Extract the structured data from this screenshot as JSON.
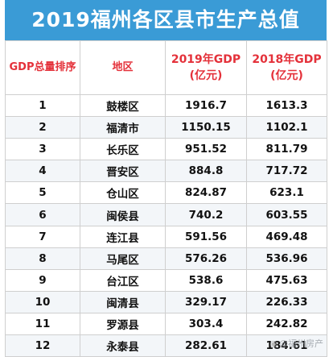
{
  "title": "2019福州各区县市生产总值",
  "headers": {
    "rank": "GDP总量排序",
    "district": "地区",
    "gdp2019_line1": "2019年GDP",
    "gdp2019_line2": "(亿元)",
    "gdp2018_line1": "2018年GDP",
    "gdp2018_line2": "(亿元)"
  },
  "rows": [
    {
      "rank": "1",
      "district": "鼓楼区",
      "gdp2019": "1916.7",
      "gdp2018": "1613.3"
    },
    {
      "rank": "2",
      "district": "福清市",
      "gdp2019": "1150.15",
      "gdp2018": "1102.1"
    },
    {
      "rank": "3",
      "district": "长乐区",
      "gdp2019": "951.52",
      "gdp2018": "811.79"
    },
    {
      "rank": "4",
      "district": "晋安区",
      "gdp2019": "884.8",
      "gdp2018": "717.72"
    },
    {
      "rank": "5",
      "district": "仓山区",
      "gdp2019": "824.87",
      "gdp2018": "623.1"
    },
    {
      "rank": "6",
      "district": "闽侯县",
      "gdp2019": "740.2",
      "gdp2018": "603.55"
    },
    {
      "rank": "7",
      "district": "连江县",
      "gdp2019": "591.56",
      "gdp2018": "469.48"
    },
    {
      "rank": "8",
      "district": "马尾区",
      "gdp2019": "576.26",
      "gdp2018": "536.96"
    },
    {
      "rank": "9",
      "district": "台江区",
      "gdp2019": "538.6",
      "gdp2018": "475.63"
    },
    {
      "rank": "10",
      "district": "闽清县",
      "gdp2019": "329.17",
      "gdp2018": "226.33"
    },
    {
      "rank": "11",
      "district": "罗源县",
      "gdp2019": "303.4",
      "gdp2018": "242.82"
    },
    {
      "rank": "12",
      "district": "永泰县",
      "gdp2019": "282.61",
      "gdp2018": "184.61"
    }
  ],
  "watermark": "@福州房产",
  "colors": {
    "title_bg": "#3a9bd6",
    "header_text": "#e4313a"
  }
}
